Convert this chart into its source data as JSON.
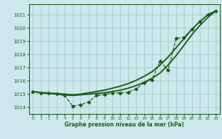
{
  "title": "Graphe pression niveau de la mer (hPa)",
  "background_color": "#cce8ec",
  "grid_color": "#aacccc",
  "line_color": "#1a5c1a",
  "xlim": [
    -0.5,
    23.5
  ],
  "ylim": [
    1013.5,
    1021.8
  ],
  "xticks": [
    0,
    1,
    2,
    3,
    4,
    5,
    6,
    7,
    8,
    9,
    10,
    11,
    12,
    13,
    14,
    15,
    16,
    17,
    18,
    19,
    20,
    21,
    22,
    23
  ],
  "yticks": [
    1014,
    1015,
    1016,
    1017,
    1018,
    1019,
    1020,
    1021
  ],
  "series": [
    {
      "x": [
        0,
        1,
        2,
        3,
        4,
        5,
        6,
        7,
        8,
        9,
        10,
        11,
        12,
        13,
        14,
        15,
        16,
        17,
        18,
        19,
        20,
        21,
        22,
        23
      ],
      "y": [
        1015.2,
        1015.1,
        1015.1,
        1015.0,
        1014.9,
        1014.1,
        1014.2,
        1014.4,
        1014.9,
        1014.95,
        1015.1,
        1015.1,
        1015.15,
        1015.4,
        1015.85,
        1016.1,
        1017.5,
        1016.8,
        1019.2,
        1019.3,
        1019.9,
        1020.5,
        1021.0,
        1021.3
      ],
      "marker": "D",
      "markersize": 2.2,
      "linewidth": 0.9,
      "linestyle": "--"
    },
    {
      "x": [
        0,
        1,
        2,
        3,
        4,
        5,
        6,
        7,
        8,
        9,
        10,
        11,
        12,
        13,
        14,
        15,
        16,
        17,
        18,
        19,
        20,
        21,
        22,
        23
      ],
      "y": [
        1015.2,
        1015.1,
        1015.05,
        1015.0,
        1014.95,
        1014.9,
        1014.95,
        1015.0,
        1015.05,
        1015.1,
        1015.2,
        1015.3,
        1015.45,
        1015.65,
        1015.9,
        1016.2,
        1016.6,
        1017.2,
        1017.9,
        1018.7,
        1019.5,
        1020.2,
        1020.8,
        1021.3
      ],
      "marker": null,
      "markersize": 0,
      "linewidth": 1.4,
      "linestyle": "-"
    },
    {
      "x": [
        0,
        1,
        2,
        3,
        4,
        5,
        6,
        7,
        8,
        9,
        10,
        11,
        12,
        13,
        14,
        15,
        16,
        17,
        18,
        19,
        20,
        21,
        22,
        23
      ],
      "y": [
        1015.2,
        1015.12,
        1015.08,
        1015.05,
        1015.0,
        1014.95,
        1015.0,
        1015.1,
        1015.2,
        1015.3,
        1015.45,
        1015.6,
        1015.8,
        1016.05,
        1016.35,
        1016.7,
        1017.2,
        1017.8,
        1018.5,
        1019.2,
        1019.9,
        1020.5,
        1021.0,
        1021.3
      ],
      "marker": null,
      "markersize": 0,
      "linewidth": 1.4,
      "linestyle": "-"
    }
  ]
}
